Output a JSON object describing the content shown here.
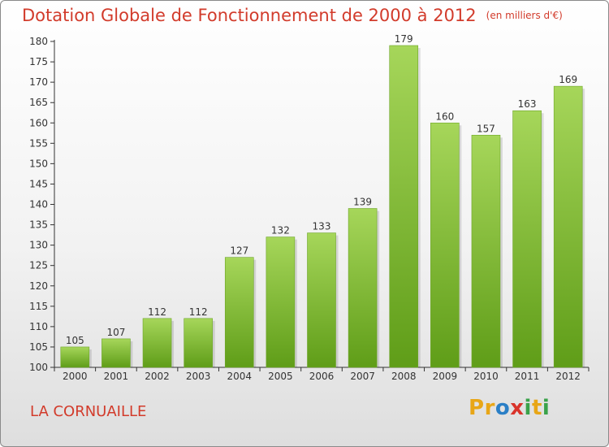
{
  "title": "Dotation Globale de Fonctionnement de 2000 à 2012",
  "unit": "(en milliers d'€)",
  "commune": "LA CORNUAILLE",
  "logo": {
    "letters": [
      "P",
      "r",
      "o",
      "x",
      "i",
      "t",
      "i"
    ],
    "colors": [
      "#e8a617",
      "#e8a617",
      "#2a7fc6",
      "#d9342b",
      "#3aa24a",
      "#e8a617",
      "#3aa24a"
    ]
  },
  "colors": {
    "title": "#d23b2b",
    "bar_light": "#a6d65a",
    "bar_dark": "#5f9d18",
    "axis": "#333333"
  },
  "chart_data": {
    "type": "bar",
    "categories": [
      "2000",
      "2001",
      "2002",
      "2003",
      "2004",
      "2005",
      "2006",
      "2007",
      "2008",
      "2009",
      "2010",
      "2011",
      "2012"
    ],
    "values": [
      105,
      107,
      112,
      112,
      127,
      132,
      133,
      139,
      179,
      160,
      157,
      163,
      169
    ],
    "ylim": [
      100,
      180
    ],
    "yticks": [
      100,
      105,
      110,
      115,
      120,
      125,
      130,
      135,
      140,
      145,
      150,
      155,
      160,
      165,
      170,
      175,
      180
    ],
    "grid": false,
    "legend": "none"
  }
}
